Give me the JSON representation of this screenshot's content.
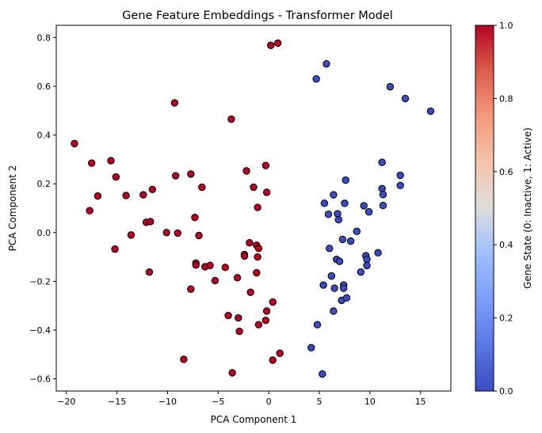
{
  "chart_data": {
    "type": "scatter",
    "title": "Gene Feature Embeddings - Transformer Model",
    "xlabel": "PCA Component 1",
    "ylabel": "PCA Component 2",
    "xlim": [
      -21,
      18
    ],
    "ylim": [
      -0.65,
      0.85
    ],
    "x_ticks": [
      -20,
      -15,
      -10,
      -5,
      0,
      5,
      10,
      15
    ],
    "y_ticks": [
      -0.6,
      -0.4,
      -0.2,
      0.0,
      0.2,
      0.4,
      0.6,
      0.8
    ],
    "x_tick_labels": [
      "−20",
      "−15",
      "−10",
      "−5",
      "0",
      "5",
      "10",
      "15"
    ],
    "y_tick_labels": [
      "−0.6",
      "−0.4",
      "−0.2",
      "0.0",
      "0.2",
      "0.4",
      "0.6",
      "0.8"
    ],
    "grid": false,
    "marker_edge_color": "#000000",
    "colormap": "coolwarm",
    "colors": {
      "inactive": "#3b4cc0",
      "active": "#b40426"
    },
    "colorbar": {
      "label": "Gene State (0: Inactive, 1: Active)",
      "range": [
        0,
        1
      ],
      "ticks": [
        0.0,
        0.2,
        0.4,
        0.6,
        0.8,
        1.0
      ],
      "tick_labels": [
        "0.0",
        "0.2",
        "0.4",
        "0.6",
        "0.8",
        "1.0"
      ]
    },
    "series": [
      {
        "state": 1,
        "points": [
          [
            -19.2,
            0.365
          ],
          [
            -17.5,
            0.285
          ],
          [
            -17.7,
            0.09
          ],
          [
            -16.9,
            0.15
          ],
          [
            -15.6,
            0.295
          ],
          [
            -15.1,
            0.228
          ],
          [
            -15.2,
            -0.068
          ],
          [
            -14.1,
            0.152
          ],
          [
            -13.6,
            -0.01
          ],
          [
            -12.4,
            0.155
          ],
          [
            -12.1,
            0.042
          ],
          [
            -11.7,
            0.045
          ],
          [
            -11.5,
            0.177
          ],
          [
            -11.8,
            -0.162
          ],
          [
            -10.1,
            0.0
          ],
          [
            -9.3,
            0.532
          ],
          [
            -9.2,
            0.233
          ],
          [
            -9.0,
            -0.002
          ],
          [
            -8.4,
            -0.52
          ],
          [
            -7.7,
            0.24
          ],
          [
            -7.3,
            0.062
          ],
          [
            -7.7,
            -0.232
          ],
          [
            -6.9,
            -0.012
          ],
          [
            -6.6,
            0.186
          ],
          [
            -7.2,
            -0.125
          ],
          [
            -7.2,
            -0.133
          ],
          [
            -6.3,
            -0.14
          ],
          [
            -5.8,
            -0.135
          ],
          [
            -5.3,
            -0.197
          ],
          [
            -4.3,
            -0.143
          ],
          [
            -3.7,
            0.465
          ],
          [
            -3.6,
            -0.575
          ],
          [
            -4.0,
            -0.34
          ],
          [
            -3.1,
            -0.185
          ],
          [
            -3.0,
            -0.35
          ],
          [
            -2.9,
            -0.405
          ],
          [
            -2.4,
            -0.09
          ],
          [
            -2.4,
            -0.096
          ],
          [
            -2.2,
            0.253
          ],
          [
            -1.9,
            -0.042
          ],
          [
            -1.8,
            -0.245
          ],
          [
            -1.5,
            0.186
          ],
          [
            -1.2,
            -0.052
          ],
          [
            -1.0,
            -0.065
          ],
          [
            -1.1,
            0.103
          ],
          [
            -1.1,
            -0.1
          ],
          [
            -1.2,
            -0.165
          ],
          [
            -1.0,
            -0.378
          ],
          [
            -0.3,
            0.275
          ],
          [
            -0.2,
            0.165
          ],
          [
            -0.2,
            -0.322
          ],
          [
            -0.3,
            -0.36
          ],
          [
            0.2,
            0.768
          ],
          [
            0.4,
            -0.285
          ],
          [
            0.4,
            -0.523
          ],
          [
            0.9,
            0.777
          ],
          [
            1.1,
            -0.495
          ]
        ]
      },
      {
        "state": 0,
        "points": [
          [
            4.2,
            -0.472
          ],
          [
            4.7,
            0.63
          ],
          [
            4.8,
            -0.378
          ],
          [
            5.3,
            -0.58
          ],
          [
            5.4,
            -0.215
          ],
          [
            5.5,
            0.12
          ],
          [
            5.7,
            0.692
          ],
          [
            5.9,
            0.075
          ],
          [
            6.0,
            -0.065
          ],
          [
            6.2,
            -0.178
          ],
          [
            6.4,
            0.155
          ],
          [
            6.4,
            -0.322
          ],
          [
            6.5,
            -0.228
          ],
          [
            6.7,
            -0.11
          ],
          [
            6.8,
            0.077
          ],
          [
            6.9,
            0.053
          ],
          [
            7.0,
            -0.118
          ],
          [
            7.2,
            -0.278
          ],
          [
            7.3,
            -0.028
          ],
          [
            7.4,
            -0.215
          ],
          [
            7.4,
            -0.228
          ],
          [
            7.5,
            0.12
          ],
          [
            7.6,
            0.215
          ],
          [
            7.7,
            -0.268
          ],
          [
            8.1,
            -0.035
          ],
          [
            8.7,
            0.005
          ],
          [
            9.1,
            -0.162
          ],
          [
            9.4,
            0.11
          ],
          [
            9.6,
            -0.095
          ],
          [
            9.7,
            -0.11
          ],
          [
            9.7,
            -0.135
          ],
          [
            9.9,
            0.085
          ],
          [
            10.8,
            -0.083
          ],
          [
            11.2,
            0.288
          ],
          [
            11.2,
            0.18
          ],
          [
            11.3,
            0.156
          ],
          [
            11.3,
            0.111
          ],
          [
            12.0,
            0.598
          ],
          [
            13.0,
            0.235
          ],
          [
            13.0,
            0.193
          ],
          [
            13.5,
            0.55
          ],
          [
            16.0,
            0.498
          ]
        ]
      }
    ]
  }
}
